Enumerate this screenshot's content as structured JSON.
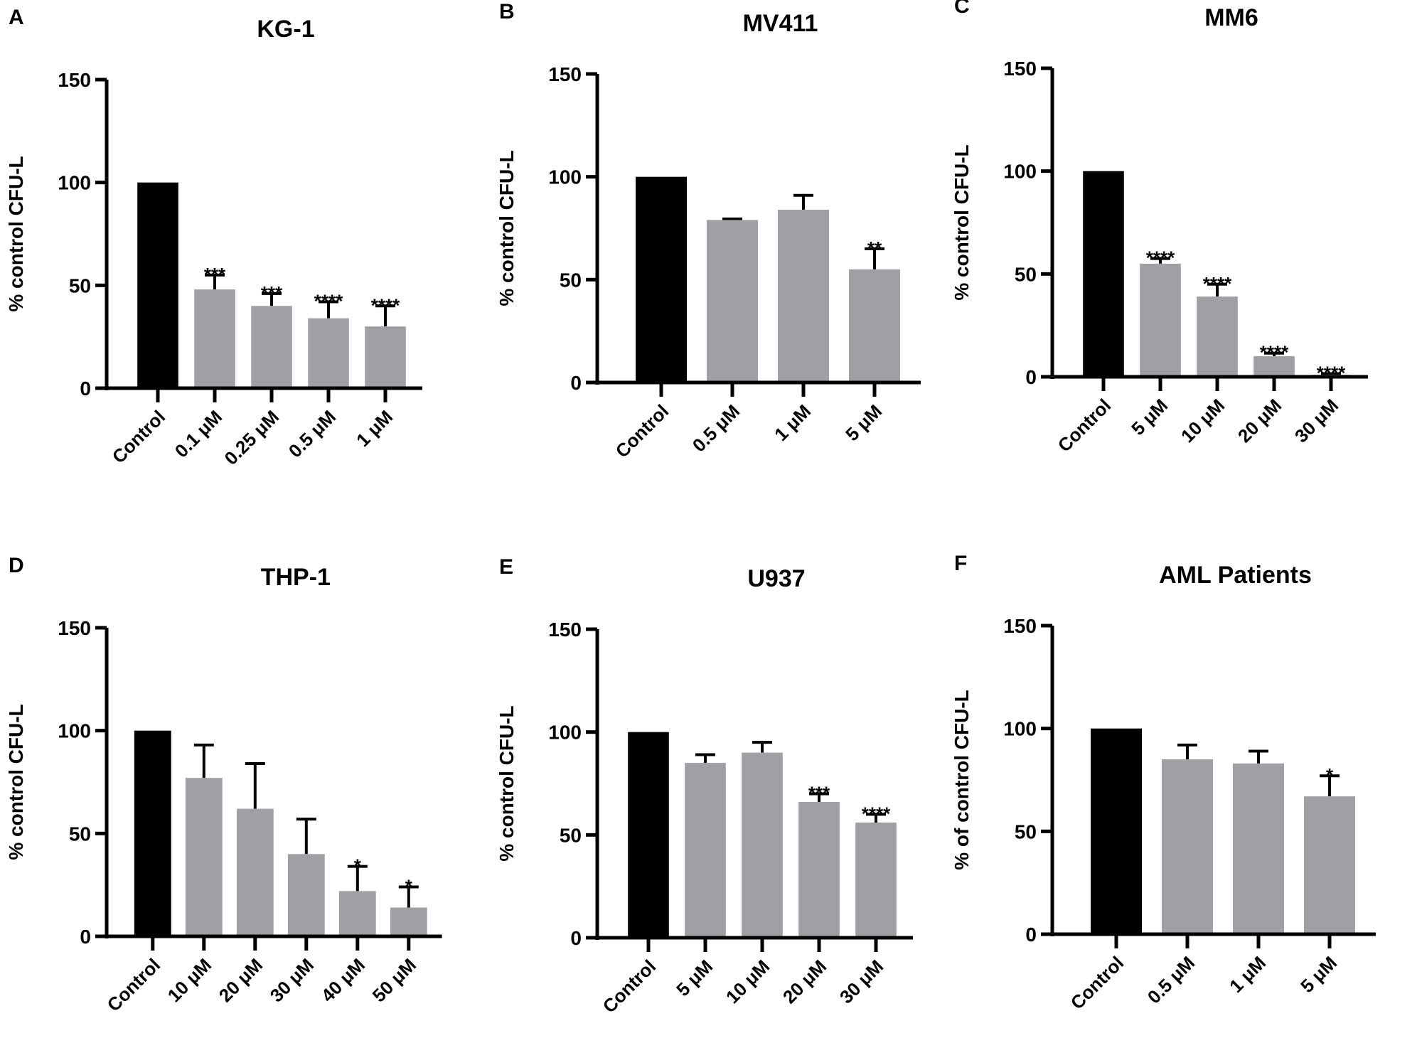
{
  "chart_data": [
    {
      "type": "bar",
      "panel_label": "A",
      "title": "KG-1",
      "ylabel": "% control CFU-L",
      "ylim": [
        0,
        150
      ],
      "yticks": [
        0,
        50,
        100,
        150
      ],
      "categories": [
        "Control",
        "0.1 μM",
        "0.25 μM",
        "0.5 μM",
        "1 μM"
      ],
      "values": [
        100,
        48,
        40,
        34,
        30
      ],
      "errors": [
        0,
        7,
        6,
        8,
        10
      ],
      "annotations": [
        "",
        "***",
        "***",
        "****",
        "****"
      ]
    },
    {
      "type": "bar",
      "panel_label": "B",
      "title": "MV411",
      "ylabel": "% control CFU-L",
      "ylim": [
        0,
        150
      ],
      "yticks": [
        0,
        50,
        100,
        150
      ],
      "categories": [
        "Control",
        "0.5 μM",
        "1 μM",
        "5 μM"
      ],
      "values": [
        100,
        79,
        84,
        55
      ],
      "errors": [
        0,
        0.5,
        7,
        10
      ],
      "annotations": [
        "",
        "",
        "",
        "**"
      ]
    },
    {
      "type": "bar",
      "panel_label": "C",
      "title": "MM6",
      "ylabel": "% control CFU-L",
      "ylim": [
        0,
        150
      ],
      "yticks": [
        0,
        50,
        100,
        150
      ],
      "categories": [
        "Control",
        "5 μM",
        "10 μM",
        "20 μM",
        "30 μM"
      ],
      "values": [
        100,
        55,
        39,
        10,
        1
      ],
      "errors": [
        0,
        2.5,
        6,
        1.5,
        0.5
      ],
      "annotations": [
        "",
        "****",
        "****",
        "****",
        "****"
      ]
    },
    {
      "type": "bar",
      "panel_label": "D",
      "title": "THP-1",
      "ylabel": "% control CFU-L",
      "ylim": [
        0,
        150
      ],
      "yticks": [
        0,
        50,
        100,
        150
      ],
      "categories": [
        "Control",
        "10 μM",
        "20 μM",
        "30 μM",
        "40 μM",
        "50 μM"
      ],
      "values": [
        100,
        77,
        62,
        40,
        22,
        14
      ],
      "errors": [
        0,
        16,
        22,
        17,
        12,
        10
      ],
      "annotations": [
        "",
        "",
        "",
        "",
        "*",
        "*"
      ]
    },
    {
      "type": "bar",
      "panel_label": "E",
      "title": "U937",
      "ylabel": "% control CFU-L",
      "ylim": [
        0,
        150
      ],
      "yticks": [
        0,
        50,
        100,
        150
      ],
      "categories": [
        "Control",
        "5 μM",
        "10 μM",
        "20 μM",
        "30 μM"
      ],
      "values": [
        100,
        85,
        90,
        66,
        56
      ],
      "errors": [
        0,
        4,
        5,
        4,
        4
      ],
      "annotations": [
        "",
        "",
        "",
        "***",
        "****"
      ]
    },
    {
      "type": "bar",
      "panel_label": "F",
      "title": "AML Patients",
      "ylabel": "% of control CFU-L",
      "ylim": [
        0,
        150
      ],
      "yticks": [
        0,
        50,
        100,
        150
      ],
      "categories": [
        "Control",
        "0.5 μM",
        "1 μM",
        "5 μM"
      ],
      "values": [
        100,
        85,
        83,
        67
      ],
      "errors": [
        0,
        7,
        6,
        10
      ],
      "annotations": [
        "",
        "",
        "",
        "*"
      ]
    }
  ],
  "colors": {
    "control": "#000000",
    "treatment": "#a0a0a4",
    "axis": "#000000"
  }
}
